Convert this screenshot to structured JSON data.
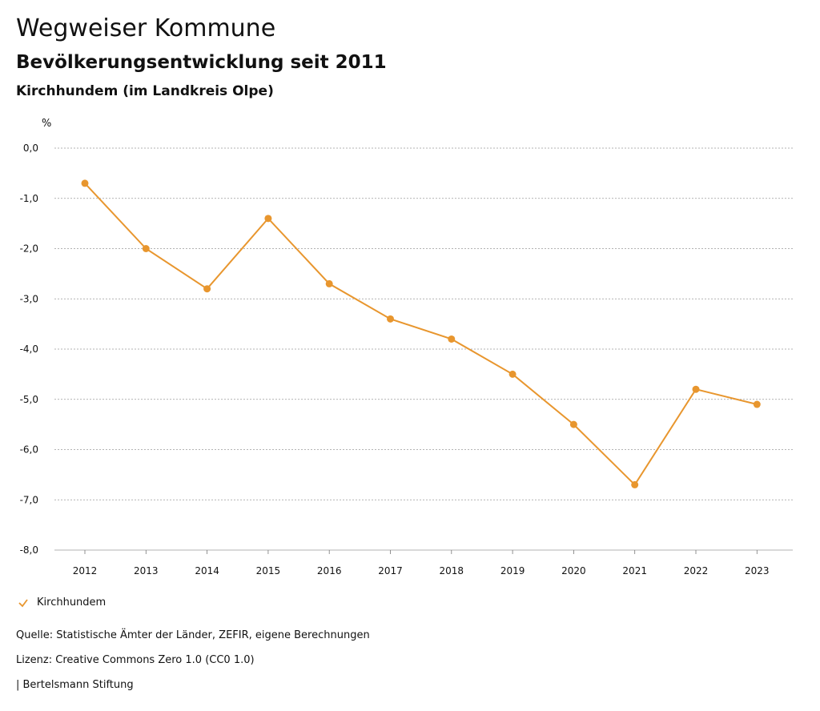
{
  "header": {
    "title": "Wegweiser Kommune",
    "subtitle": "Bevölkerungsentwicklung seit 2011",
    "region": "Kirchhundem (im Landkreis Olpe)"
  },
  "chart_data": {
    "type": "line",
    "ylabel": "%",
    "xlabel": "",
    "categories": [
      "2012",
      "2013",
      "2014",
      "2015",
      "2016",
      "2017",
      "2018",
      "2019",
      "2020",
      "2021",
      "2022",
      "2023"
    ],
    "series": [
      {
        "name": "Kirchhundem",
        "color": "#E8962E",
        "values": [
          -0.7,
          -2.0,
          -2.8,
          -1.4,
          -2.7,
          -3.4,
          -3.8,
          -4.5,
          -5.5,
          -6.7,
          -4.8,
          -5.1
        ]
      }
    ],
    "ylim": [
      -8.0,
      0.0
    ],
    "yticks": [
      "0,0",
      "-1,0",
      "-2,0",
      "-3,0",
      "-4,0",
      "-5,0",
      "-6,0",
      "-7,0",
      "-8,0"
    ],
    "grid": true,
    "legend": "bottom-left"
  },
  "legend": {
    "label": "Kirchhundem"
  },
  "footer": {
    "source": "Quelle: Statistische Ämter der Länder, ZEFIR, eigene Berechnungen",
    "license": "Lizenz: Creative Commons Zero 1.0 (CC0 1.0)",
    "publisher": "| Bertelsmann Stiftung"
  }
}
